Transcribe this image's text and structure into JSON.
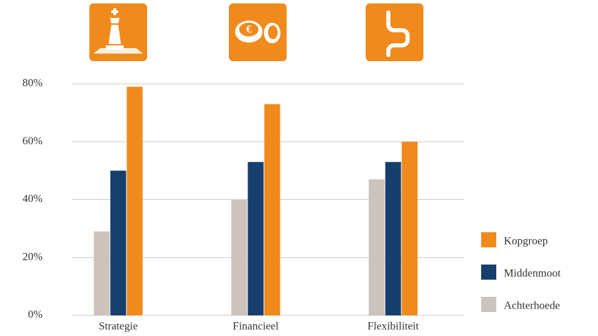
{
  "chart_data": {
    "type": "bar",
    "categories": [
      "Strategie",
      "Financieel",
      "Flexibiliteit"
    ],
    "series": [
      {
        "name": "Achterhoede",
        "color": "#cbc3bc",
        "values": [
          29,
          40,
          47
        ]
      },
      {
        "name": "Middenmoot",
        "color": "#173f6e",
        "values": [
          50,
          53,
          53
        ]
      },
      {
        "name": "Kopgroep",
        "color": "#f08a1c",
        "values": [
          79,
          73,
          60
        ]
      }
    ],
    "ylim": [
      0,
      80
    ],
    "yticks": [
      {
        "value": 0,
        "label": "0%"
      },
      {
        "value": 20,
        "label": "20%"
      },
      {
        "value": 40,
        "label": "40%"
      },
      {
        "value": 60,
        "label": "60%"
      },
      {
        "value": 80,
        "label": "80%"
      }
    ],
    "grid": true,
    "legend": "right"
  }
}
